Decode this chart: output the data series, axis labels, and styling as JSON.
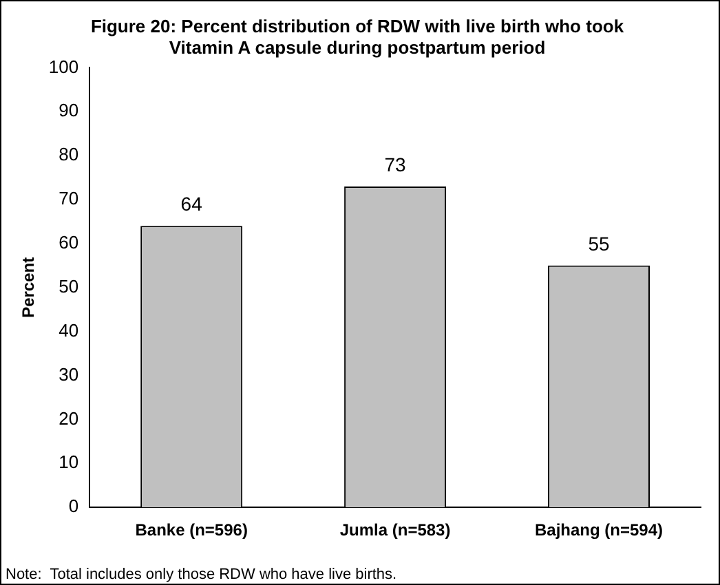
{
  "chart_data": {
    "type": "bar",
    "title": "Figure 20: Percent distribution of RDW with live birth who took Vitamin A capsule during postpartum period",
    "ylabel": "Percent",
    "categories": [
      "Banke (n=596)",
      "Jumla (n=583)",
      "Bajhang (n=594)"
    ],
    "values": [
      64,
      73,
      55
    ],
    "color": "#c0c0c0",
    "ylim": [
      0,
      100
    ],
    "yticks": [
      0,
      10,
      20,
      30,
      40,
      50,
      60,
      70,
      80,
      90,
      100
    ],
    "grid": false,
    "legend": false,
    "data_labels": true,
    "annotations": [
      "Note:  Total includes only those RDW who have live births."
    ]
  }
}
